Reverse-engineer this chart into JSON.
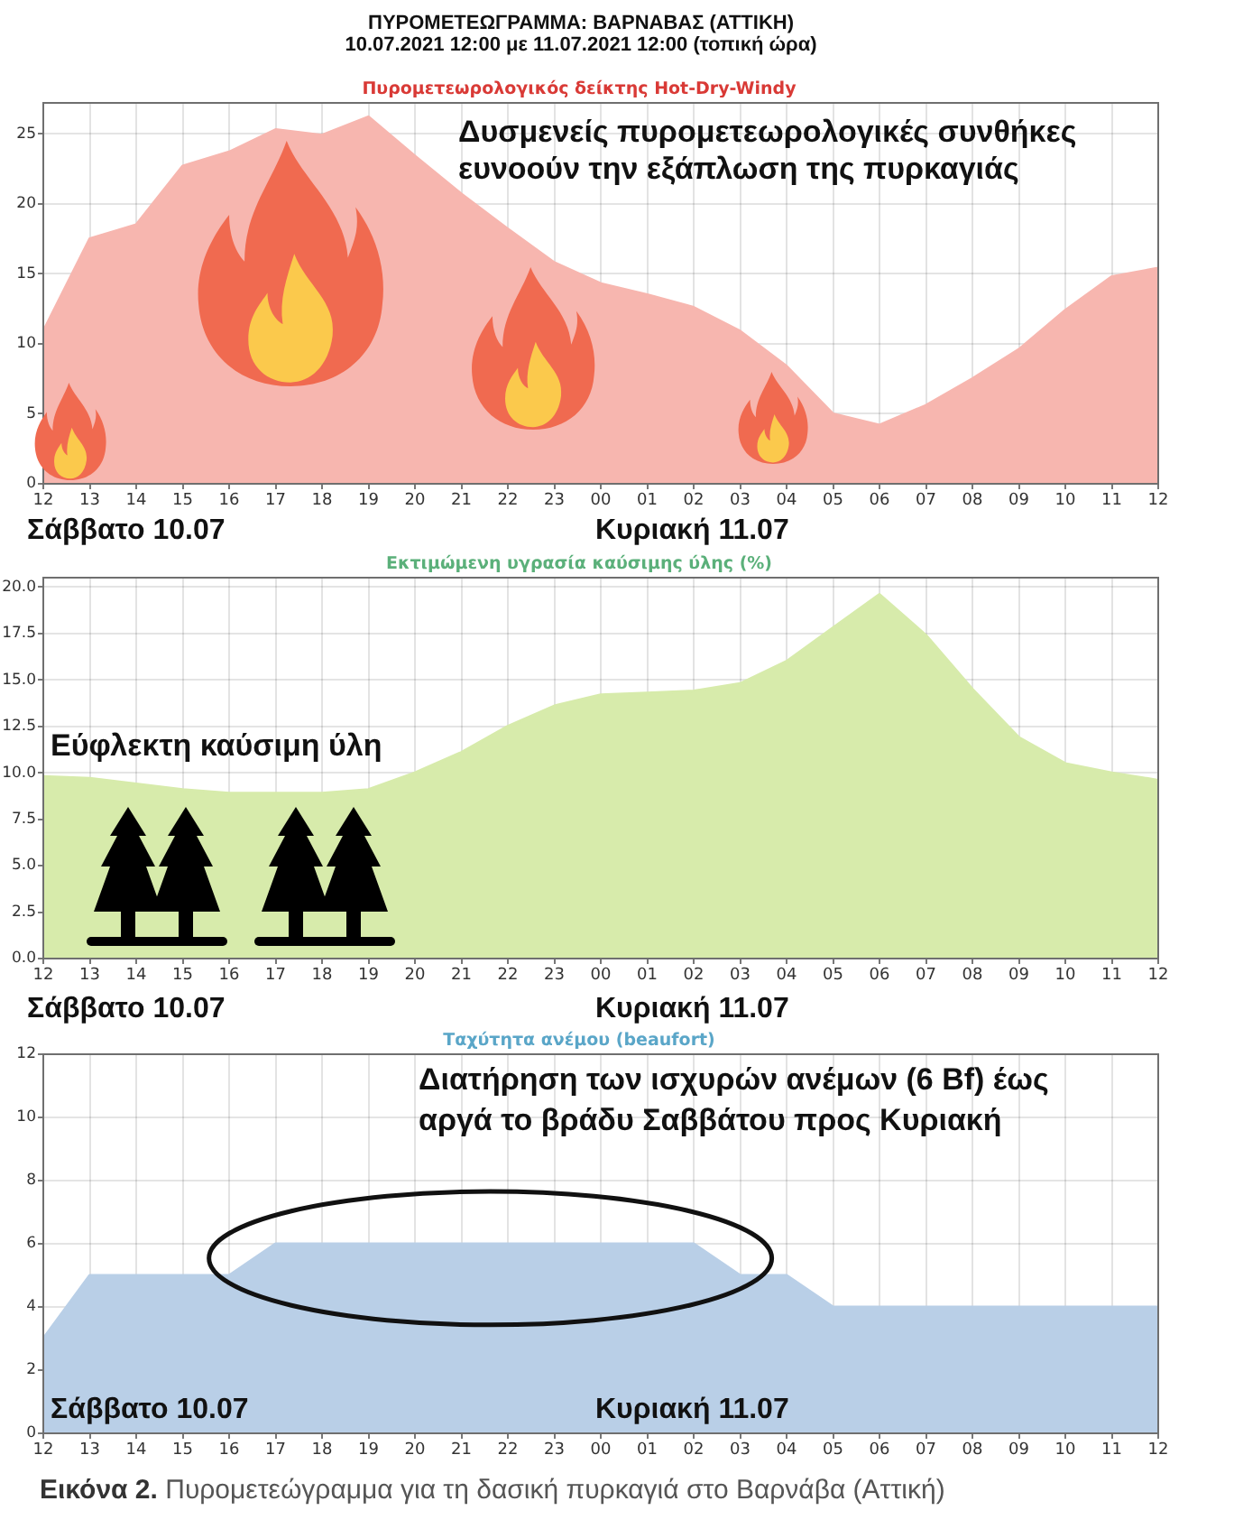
{
  "chart_data": [
    {
      "type": "area",
      "title": "Πυρομετεωρολογικός δείκτης Hot-Dry-Windy",
      "categories": [
        "12",
        "13",
        "14",
        "15",
        "16",
        "17",
        "18",
        "19",
        "20",
        "21",
        "22",
        "23",
        "00",
        "01",
        "02",
        "03",
        "04",
        "05",
        "06",
        "07",
        "08",
        "09",
        "10",
        "11",
        "12"
      ],
      "series": [
        {
          "color": "#f7b6af",
          "values": [
            10.9,
            17.5,
            18.5,
            22.7,
            23.7,
            25.3,
            24.9,
            26.2,
            23.4,
            20.7,
            18.2,
            15.8,
            14.3,
            13.5,
            12.6,
            10.9,
            8.4,
            5.0,
            4.2,
            5.6,
            7.5,
            9.6,
            12.4,
            14.8,
            15.4
          ]
        }
      ],
      "ylim": [
        0,
        27.2
      ],
      "yticks": [
        0,
        5,
        10,
        15,
        20,
        25
      ],
      "grid": true,
      "annotations": [
        "ΠΥΡΟΜΕΤΕΩΓΡΑΜΜΑ: ΒΑΡΝΑΒΑΣ (ΑΤΤΙΚΗ)",
        "10.07.2021 12:00 με 11.07.2021 12:00 (τοπική ώρα)",
        "Δυσμενείς πυρομετεωρολογικές συνθήκες ευνοούν την εξάπλωση της πυρκαγιάς",
        "Σάββατο 10.07",
        "Κυριακή 11.07"
      ]
    },
    {
      "type": "area",
      "title": "Εκτιμώμενη υγρασία καύσιμης ύλης (%)",
      "categories": [
        "12",
        "13",
        "14",
        "15",
        "16",
        "17",
        "18",
        "19",
        "20",
        "21",
        "22",
        "23",
        "00",
        "01",
        "02",
        "03",
        "04",
        "05",
        "06",
        "07",
        "08",
        "09",
        "10",
        "11",
        "12"
      ],
      "series": [
        {
          "color": "#d7ebab",
          "values": [
            9.8,
            9.7,
            9.4,
            9.1,
            8.9,
            8.9,
            8.9,
            9.1,
            10.0,
            11.1,
            12.5,
            13.6,
            14.2,
            14.3,
            14.4,
            14.8,
            16.0,
            17.8,
            19.6,
            17.4,
            14.5,
            11.9,
            10.5,
            10.0,
            9.6
          ]
        }
      ],
      "ylim": [
        0,
        20.5
      ],
      "yticks": [
        {
          "value": 0,
          "label": "0.0"
        },
        2.5,
        {
          "value": 5,
          "label": "5.0"
        },
        7.5,
        {
          "value": 10,
          "label": "10.0"
        },
        12.5,
        {
          "value": 15,
          "label": "15.0"
        },
        17.5,
        {
          "value": 20,
          "label": "20.0"
        }
      ],
      "grid": true,
      "annotations": [
        "Εύφλεκτη καύσιμη ύλη",
        "Σάββατο 10.07",
        "Κυριακή 11.07"
      ]
    },
    {
      "type": "area",
      "title": "Ταχύτητα ανέμου (beaufort)",
      "categories": [
        "12",
        "13",
        "14",
        "15",
        "16",
        "17",
        "18",
        "19",
        "20",
        "21",
        "22",
        "23",
        "00",
        "01",
        "02",
        "03",
        "04",
        "05",
        "06",
        "07",
        "08",
        "09",
        "10",
        "11",
        "12"
      ],
      "series": [
        {
          "color": "#b9cfe7",
          "values": [
            3,
            5,
            5,
            5,
            5,
            6,
            6,
            6,
            6,
            6,
            6,
            6,
            6,
            6,
            6,
            5,
            5,
            4,
            4,
            4,
            4,
            4,
            4,
            4,
            4
          ]
        }
      ],
      "ylim": [
        0,
        12
      ],
      "yticks": [
        0,
        2,
        4,
        6,
        8,
        10,
        12
      ],
      "grid": true,
      "annotations": [
        "Διατήρηση των ισχυρών ανέμων (6 Bf) έως αργά το βράδυ Σαββάτου προς Κυριακή",
        "Σάββατο 10.07",
        "Κυριακή 11.07",
        "Εικόνα 2.",
        "Πυρομετεώγραμμα για τη δασική πυρκαγιά στο Βαρνάβα (Αττική)"
      ]
    }
  ]
}
